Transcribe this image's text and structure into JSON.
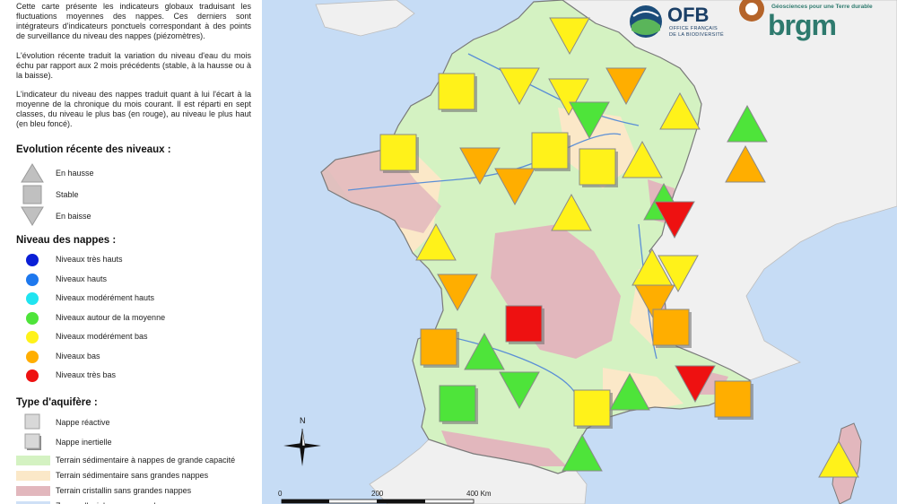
{
  "intro": {
    "p1": "Cette carte présente les indicateurs globaux traduisant les fluctuations moyennes des nappes. Ces derniers sont intégrateurs d'indicateurs ponctuels correspondant à des points de surveillance du niveau des nappes (piézomètres).",
    "p2": "L'évolution récente traduit la variation du niveau d'eau du mois échu par rapport aux 2 mois précédents (stable, à la hausse ou à la baisse).",
    "p3": "L'indicateur du niveau des nappes traduit quant à lui l'écart à la moyenne de la chronique du mois courant. Il est réparti en sept classes, du niveau le plus bas (en rouge), au niveau le plus haut (en bleu foncé)."
  },
  "evolution": {
    "title": "Evolution récente des niveaux :",
    "items": [
      {
        "label": "En hausse",
        "shape": "up"
      },
      {
        "label": "Stable",
        "shape": "square"
      },
      {
        "label": "En baisse",
        "shape": "down"
      }
    ]
  },
  "niveau": {
    "title": "Niveau des nappes :",
    "items": [
      {
        "label": "Niveaux très hauts",
        "color": "#0a1fd6"
      },
      {
        "label": "Niveaux hauts",
        "color": "#1e78ee"
      },
      {
        "label": "Niveaux modérément hauts",
        "color": "#20e4f0"
      },
      {
        "label": "Niveaux autour de la moyenne",
        "color": "#4ee43a"
      },
      {
        "label": "Niveaux modérément bas",
        "color": "#fff21a"
      },
      {
        "label": "Niveaux bas",
        "color": "#ffae00"
      },
      {
        "label": "Niveaux très bas",
        "color": "#ee1111"
      }
    ]
  },
  "aquifere": {
    "title": "Type d'aquifère :",
    "items": [
      {
        "label": "Nappe réactive",
        "shadow": false
      },
      {
        "label": "Nappe inertielle",
        "shadow": true
      }
    ],
    "terrains": [
      {
        "label": "Terrain sédimentaire à nappes de grande capacité",
        "color": "#d4f2c2"
      },
      {
        "label": "Terrain sédimentaire sans grandes nappes",
        "color": "#fbe8c8"
      },
      {
        "label": "Terrain cristallin sans grandes nappes",
        "color": "#e2b7bd"
      },
      {
        "label": "Zones alluviales sans grandes nappes",
        "color": "#cfe0f6"
      }
    ]
  },
  "logos": {
    "ofb": "OFB",
    "ofb_sub1": "OFFICE FRANÇAIS",
    "ofb_sub2": "DE LA BIODIVERSITÉ",
    "brgm_tag": "Géosciences pour une Terre durable",
    "brgm": "brgm"
  },
  "compass": {
    "north": "N"
  },
  "scale": {
    "t0": "0",
    "t1": "200",
    "t2": "400 Km"
  },
  "colors": {
    "sea": "#c6dcf5",
    "neighbor": "#f0f0f0",
    "border": "#7a7a7a"
  },
  "indicators": [
    {
      "shape": "down",
      "level": "Niveaux modérément bas"
    },
    {
      "shape": "square",
      "level": "Niveaux modérément bas"
    },
    {
      "shape": "down",
      "level": "Niveaux modérément bas"
    },
    {
      "shape": "down",
      "level": "Niveaux modérément bas"
    },
    {
      "shape": "down",
      "level": "Niveaux bas"
    },
    {
      "shape": "down",
      "level": "Niveaux autour de la moyenne"
    },
    {
      "shape": "up",
      "level": "Niveaux modérément bas"
    },
    {
      "shape": "up",
      "level": "Niveaux autour de la moyenne"
    },
    {
      "shape": "square",
      "level": "Niveaux modérément bas"
    },
    {
      "shape": "square",
      "level": "Niveaux modérément bas"
    },
    {
      "shape": "down",
      "level": "Niveaux bas"
    },
    {
      "shape": "square",
      "level": "Niveaux modérément bas"
    },
    {
      "shape": "up",
      "level": "Niveaux modérément bas"
    },
    {
      "shape": "up",
      "level": "Niveaux bas"
    },
    {
      "shape": "down",
      "level": "Niveaux bas"
    },
    {
      "shape": "up",
      "level": "Niveaux autour de la moyenne"
    },
    {
      "shape": "down",
      "level": "Niveaux très bas"
    },
    {
      "shape": "up",
      "level": "Niveaux modérément bas"
    },
    {
      "shape": "up",
      "level": "Niveaux modérément bas"
    },
    {
      "shape": "up",
      "level": "Niveaux modérément bas"
    },
    {
      "shape": "down",
      "level": "Niveaux modérément bas"
    },
    {
      "shape": "down",
      "level": "Niveaux bas"
    },
    {
      "shape": "down",
      "level": "Niveaux bas"
    },
    {
      "shape": "square",
      "level": "Niveaux très bas"
    },
    {
      "shape": "square",
      "level": "Niveaux bas"
    },
    {
      "shape": "square",
      "level": "Niveaux bas"
    },
    {
      "shape": "up",
      "level": "Niveaux autour de la moyenne"
    },
    {
      "shape": "square",
      "level": "Niveaux autour de la moyenne"
    },
    {
      "shape": "down",
      "level": "Niveaux autour de la moyenne"
    },
    {
      "shape": "square",
      "level": "Niveaux modérément bas"
    },
    {
      "shape": "up",
      "level": "Niveaux autour de la moyenne"
    },
    {
      "shape": "down",
      "level": "Niveaux très bas"
    },
    {
      "shape": "square",
      "level": "Niveaux bas"
    },
    {
      "shape": "up",
      "level": "Niveaux autour de la moyenne"
    },
    {
      "shape": "up",
      "level": "Niveaux modérément bas"
    }
  ]
}
